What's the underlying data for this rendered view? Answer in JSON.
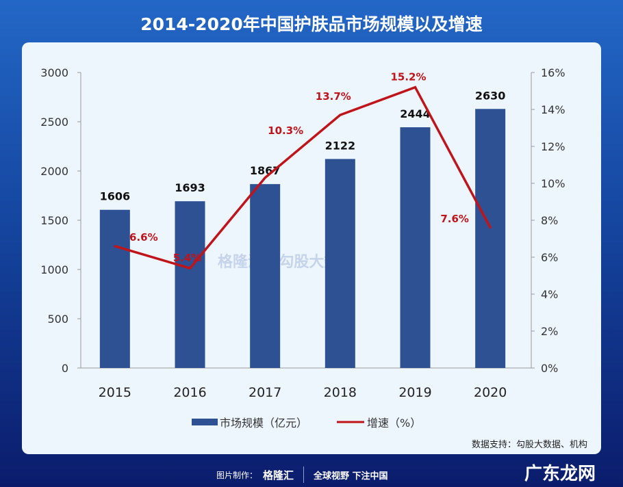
{
  "title": "2014-2020年中国护肤品市场规模以及增速",
  "chart_data": {
    "type": "bar+line",
    "title": "2014-2020年中国护肤品市场规模以及增速",
    "categories": [
      "2015",
      "2016",
      "2017",
      "2018",
      "2019",
      "2020"
    ],
    "series": [
      {
        "name": "市场规模（亿元）",
        "type": "bar",
        "axis": "left",
        "color": "#2d5193",
        "values": [
          1606,
          1693,
          1867,
          2122,
          2444,
          2630
        ],
        "labels": [
          "1606",
          "1693",
          "1867",
          "2122",
          "2444",
          "2630"
        ]
      },
      {
        "name": "增速（%）",
        "type": "line",
        "axis": "right",
        "color": "#c0141b",
        "values": [
          6.6,
          5.4,
          10.3,
          13.7,
          15.2,
          7.6
        ],
        "labels": [
          "6.6%",
          "5.4%",
          "10.3%",
          "13.7%",
          "15.2%",
          "7.6%"
        ]
      }
    ],
    "left_axis": {
      "ylim": [
        0,
        3000
      ],
      "ticks": [
        "0",
        "500",
        "1000",
        "1500",
        "2000",
        "2500",
        "3000"
      ]
    },
    "right_axis": {
      "ylim": [
        0,
        16
      ],
      "ticks": [
        "0%",
        "2%",
        "4%",
        "6%",
        "8%",
        "10%",
        "12%",
        "14%",
        "16%"
      ]
    },
    "grid": false,
    "legend": "bottom"
  },
  "source": "数据支持：勾股大数据、机构",
  "footer": {
    "made_by": "图片制作：",
    "brand": "格隆汇",
    "slogan": "全球视野 下注中国"
  },
  "watermark": "格隆汇 | 勾股大数据",
  "corner_watermark": "广东龙网"
}
